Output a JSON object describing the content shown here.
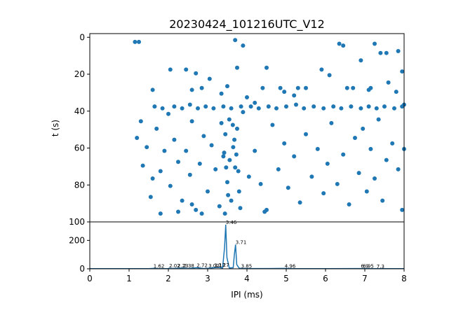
{
  "chart_data": [
    {
      "type": "scatter",
      "title": "20230424_101216UTC_V12",
      "xlabel": "",
      "ylabel": "t (s)",
      "xlim": [
        0,
        8
      ],
      "ylim": [
        100,
        -2
      ],
      "y_inverted": true,
      "y_ticks": [
        "0",
        "20",
        "40",
        "60",
        "80",
        "100"
      ],
      "color": "#1f77b4",
      "series": [
        {
          "points": [
            [
              1.15,
              2.5
            ],
            [
              1.25,
              2.5
            ],
            [
              1.6,
              28.5
            ],
            [
              2.05,
              17.5
            ],
            [
              2.45,
              17.5
            ],
            [
              2.7,
              19.5
            ],
            [
              3.05,
              22.5
            ],
            [
              3.5,
              26.5
            ],
            [
              3.7,
              1.5
            ],
            [
              3.75,
              16.5
            ],
            [
              3.9,
              4.5
            ],
            [
              4.0,
              32.5
            ],
            [
              4.2,
              35.5
            ],
            [
              4.5,
              16.5
            ],
            [
              4.85,
              27.5
            ],
            [
              4.95,
              29.5
            ],
            [
              5.2,
              31.5
            ],
            [
              5.5,
              27.5
            ],
            [
              5.9,
              17.5
            ],
            [
              6.1,
              20.5
            ],
            [
              6.35,
              3.5
            ],
            [
              6.45,
              4.5
            ],
            [
              6.7,
              27.5
            ],
            [
              6.9,
              12.5
            ],
            [
              7.15,
              27.5
            ],
            [
              7.25,
              3.5
            ],
            [
              7.4,
              8.5
            ],
            [
              7.55,
              8.5
            ],
            [
              7.85,
              7.5
            ],
            [
              7.95,
              18.5
            ],
            [
              7.6,
              24.5
            ],
            [
              7.8,
              29.5
            ],
            [
              8.0,
              36.5
            ],
            [
              2.6,
              28.5
            ],
            [
              2.85,
              27.5
            ],
            [
              3.35,
              30.5
            ],
            [
              4.4,
              27.5
            ],
            [
              5.3,
              27.5
            ],
            [
              6.55,
              27.5
            ],
            [
              7.1,
              28.5
            ],
            [
              1.2,
              54.5
            ],
            [
              1.3,
              45.5
            ],
            [
              1.35,
              69.5
            ],
            [
              1.45,
              59.5
            ],
            [
              1.55,
              86.5
            ],
            [
              1.6,
              76.5
            ],
            [
              1.7,
              49.5
            ],
            [
              1.8,
              72.5
            ],
            [
              1.9,
              61.5
            ],
            [
              2.0,
              41.5
            ],
            [
              2.05,
              80.5
            ],
            [
              2.15,
              55.5
            ],
            [
              2.25,
              67.5
            ],
            [
              2.35,
              88.5
            ],
            [
              2.45,
              61.5
            ],
            [
              2.55,
              74.5
            ],
            [
              2.6,
              45.5
            ],
            [
              2.7,
              93.5
            ],
            [
              2.8,
              68.5
            ],
            [
              2.9,
              53.5
            ],
            [
              3.0,
              83.5
            ],
            [
              3.1,
              58.5
            ],
            [
              3.2,
              71.5
            ],
            [
              3.3,
              91.5
            ],
            [
              3.35,
              46.5
            ],
            [
              3.4,
              64.5
            ],
            [
              3.45,
              52.5
            ],
            [
              3.5,
              78.5
            ],
            [
              3.55,
              44.5
            ],
            [
              3.6,
              88.5
            ],
            [
              3.65,
              59.5
            ],
            [
              3.7,
              70.5
            ],
            [
              3.75,
              49.5
            ],
            [
              3.8,
              83.5
            ],
            [
              3.9,
              40.5
            ],
            [
              4.05,
              75.5
            ],
            [
              4.2,
              61.5
            ],
            [
              4.35,
              79.5
            ],
            [
              4.5,
              93.5
            ],
            [
              4.65,
              47.5
            ],
            [
              4.8,
              71.5
            ],
            [
              4.95,
              57.5
            ],
            [
              5.05,
              81.5
            ],
            [
              5.2,
              64.5
            ],
            [
              5.35,
              89.5
            ],
            [
              5.5,
              52.5
            ],
            [
              5.65,
              75.5
            ],
            [
              5.8,
              60.5
            ],
            [
              5.95,
              84.5
            ],
            [
              6.05,
              68.5
            ],
            [
              6.15,
              46.5
            ],
            [
              6.3,
              79.5
            ],
            [
              6.45,
              63.5
            ],
            [
              6.6,
              90.5
            ],
            [
              6.75,
              54.5
            ],
            [
              6.85,
              73.5
            ],
            [
              6.95,
              49.5
            ],
            [
              7.05,
              83.5
            ],
            [
              7.15,
              60.5
            ],
            [
              7.25,
              76.5
            ],
            [
              7.35,
              44.5
            ],
            [
              7.45,
              88.5
            ],
            [
              7.55,
              66.5
            ],
            [
              7.7,
              57.5
            ],
            [
              7.85,
              71.5
            ],
            [
              7.95,
              93.5
            ],
            [
              8.0,
              60.5
            ],
            [
              1.65,
              37.5
            ],
            [
              1.85,
              38.5
            ],
            [
              2.15,
              37.5
            ],
            [
              2.35,
              38.5
            ],
            [
              2.55,
              36.5
            ],
            [
              2.75,
              38.5
            ],
            [
              2.95,
              37.5
            ],
            [
              3.15,
              38.5
            ],
            [
              3.4,
              37.5
            ],
            [
              3.6,
              38.5
            ],
            [
              3.85,
              37.5
            ],
            [
              4.1,
              37.5
            ],
            [
              4.3,
              38.5
            ],
            [
              4.55,
              37.5
            ],
            [
              4.75,
              38.5
            ],
            [
              5.0,
              37.5
            ],
            [
              5.25,
              36.5
            ],
            [
              5.45,
              38.5
            ],
            [
              5.7,
              37.5
            ],
            [
              5.95,
              38.5
            ],
            [
              6.2,
              37.5
            ],
            [
              6.4,
              38.5
            ],
            [
              6.65,
              37.5
            ],
            [
              6.9,
              38.5
            ],
            [
              7.1,
              37.5
            ],
            [
              7.3,
              38.5
            ],
            [
              7.5,
              37.5
            ],
            [
              7.75,
              38.5
            ],
            [
              7.95,
              37.5
            ],
            [
              3.42,
              62.5
            ],
            [
              3.47,
              70.5
            ],
            [
              3.52,
              85.5
            ],
            [
              3.56,
              66.5
            ],
            [
              3.68,
              55.5
            ],
            [
              3.73,
              63.5
            ],
            [
              3.78,
              72.5
            ],
            [
              3.83,
              92.5
            ],
            [
              3.44,
              95.5
            ],
            [
              3.64,
              47.5
            ],
            [
              2.25,
              94.5
            ],
            [
              2.6,
              90.5
            ],
            [
              2.85,
              95.5
            ],
            [
              1.8,
              95.5
            ],
            [
              4.45,
              94.5
            ]
          ]
        }
      ]
    },
    {
      "type": "line",
      "title": "",
      "xlabel": "IPI (ms)",
      "ylabel": "",
      "xlim": [
        0,
        8
      ],
      "ylim": [
        0,
        330
      ],
      "x_ticks": [
        "0",
        "1",
        "2",
        "3",
        "4",
        "5",
        "6",
        "7",
        "8"
      ],
      "y_ticks": [
        "0",
        "200"
      ],
      "color": "#1f77b4",
      "series": [
        {
          "x": [
            0,
            1.5,
            1.62,
            1.75,
            2.0,
            2.02,
            2.1,
            2.23,
            2.38,
            2.5,
            2.72,
            2.9,
            3.02,
            3.17,
            3.27,
            3.38,
            3.43,
            3.46,
            3.49,
            3.55,
            3.65,
            3.68,
            3.71,
            3.74,
            3.8,
            3.85,
            4.0,
            4.5,
            4.96,
            5.2,
            6.0,
            6.9,
            6.95,
            7.3,
            8.0
          ],
          "y": [
            1,
            1,
            3,
            1,
            2,
            4,
            2,
            4,
            5,
            2,
            8,
            2,
            4,
            8,
            10,
            6,
            150,
            310,
            80,
            6,
            8,
            100,
            170,
            30,
            5,
            3,
            2,
            2,
            3,
            1,
            1,
            2,
            2,
            1,
            1
          ]
        }
      ],
      "annotations": [
        {
          "x": 1.62,
          "y": 3,
          "text": "1.62"
        },
        {
          "x": 2.02,
          "y": 4,
          "text": "2.02"
        },
        {
          "x": 2.23,
          "y": 4,
          "text": "2.23"
        },
        {
          "x": 2.38,
          "y": 5,
          "text": "2.38"
        },
        {
          "x": 2.72,
          "y": 8,
          "text": "2.72"
        },
        {
          "x": 3.02,
          "y": 4,
          "text": "3.02"
        },
        {
          "x": 3.17,
          "y": 8,
          "text": "3.17"
        },
        {
          "x": 3.27,
          "y": 10,
          "text": "3.27"
        },
        {
          "x": 3.46,
          "y": 310,
          "text": "3.46"
        },
        {
          "x": 3.71,
          "y": 170,
          "text": "3.71"
        },
        {
          "x": 3.85,
          "y": 3,
          "text": "3.85"
        },
        {
          "x": 4.96,
          "y": 3,
          "text": "4.96"
        },
        {
          "x": 6.9,
          "y": 2,
          "text": "6.9"
        },
        {
          "x": 6.95,
          "y": 2,
          "text": "6.95"
        },
        {
          "x": 7.3,
          "y": 1,
          "text": "7.3"
        }
      ]
    }
  ]
}
